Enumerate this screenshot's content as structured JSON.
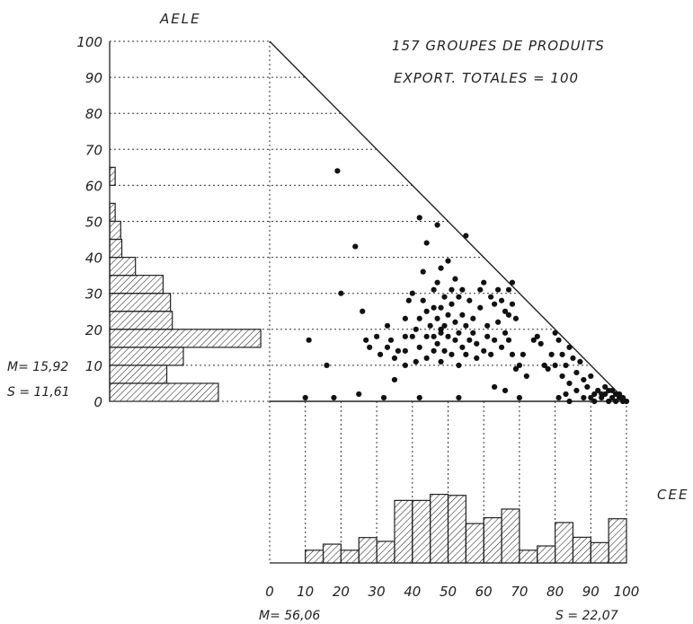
{
  "header": {
    "line1": "157 GROUPES DE PRODUITS",
    "line2": "EXPORT. TOTALES = 100"
  },
  "chart_data": {
    "type": "scatter",
    "title": "157 GROUPES DE PRODUITS",
    "subtitle": "EXPORT. TOTALES = 100",
    "xlabel": "CEE",
    "ylabel": "AELE",
    "xlim": [
      0,
      100
    ],
    "ylim": [
      0,
      100
    ],
    "x_ticks": [
      "0",
      "10",
      "20",
      "30",
      "40",
      "50",
      "60",
      "70",
      "80",
      "90",
      "100"
    ],
    "y_ticks": [
      "0",
      "10",
      "20",
      "30",
      "40",
      "50",
      "60",
      "70",
      "80",
      "90",
      "100"
    ],
    "points": [
      [
        19,
        64
      ],
      [
        11,
        17
      ],
      [
        16,
        10
      ],
      [
        10,
        1
      ],
      [
        18,
        1
      ],
      [
        25,
        2
      ],
      [
        32,
        1
      ],
      [
        42,
        1
      ],
      [
        53,
        1
      ],
      [
        24,
        43
      ],
      [
        20,
        30
      ],
      [
        26,
        25
      ],
      [
        27,
        17
      ],
      [
        28,
        15
      ],
      [
        30,
        18
      ],
      [
        31,
        13
      ],
      [
        33,
        15
      ],
      [
        33,
        21
      ],
      [
        34,
        17
      ],
      [
        35,
        12
      ],
      [
        36,
        14
      ],
      [
        35,
        6
      ],
      [
        38,
        10
      ],
      [
        38,
        14
      ],
      [
        38,
        18
      ],
      [
        38,
        23
      ],
      [
        39,
        28
      ],
      [
        40,
        18
      ],
      [
        40,
        30
      ],
      [
        41,
        11
      ],
      [
        41,
        20
      ],
      [
        42,
        15
      ],
      [
        42,
        23
      ],
      [
        42,
        51
      ],
      [
        43,
        28
      ],
      [
        43,
        36
      ],
      [
        44,
        12
      ],
      [
        44,
        18
      ],
      [
        44,
        25
      ],
      [
        45,
        21
      ],
      [
        46,
        14
      ],
      [
        46,
        26
      ],
      [
        46,
        31
      ],
      [
        47,
        16
      ],
      [
        47,
        23
      ],
      [
        47,
        33
      ],
      [
        47,
        49
      ],
      [
        48,
        11
      ],
      [
        48,
        19
      ],
      [
        48,
        26
      ],
      [
        48,
        37
      ],
      [
        49,
        14
      ],
      [
        49,
        21
      ],
      [
        49,
        29
      ],
      [
        50,
        24
      ],
      [
        50,
        18
      ],
      [
        50,
        39
      ],
      [
        51,
        13
      ],
      [
        51,
        27
      ],
      [
        51,
        31
      ],
      [
        52,
        17
      ],
      [
        52,
        22
      ],
      [
        52,
        34
      ],
      [
        53,
        10
      ],
      [
        53,
        19
      ],
      [
        53,
        29
      ],
      [
        54,
        15
      ],
      [
        54,
        24
      ],
      [
        54,
        31
      ],
      [
        55,
        21
      ],
      [
        55,
        46
      ],
      [
        55,
        13
      ],
      [
        56,
        17
      ],
      [
        56,
        28
      ],
      [
        57,
        23
      ],
      [
        57,
        19
      ],
      [
        58,
        16
      ],
      [
        59,
        26
      ],
      [
        59,
        31
      ],
      [
        60,
        14
      ],
      [
        60,
        33
      ],
      [
        61,
        21
      ],
      [
        61,
        18
      ],
      [
        62,
        13
      ],
      [
        62,
        29
      ],
      [
        63,
        27
      ],
      [
        63,
        17
      ],
      [
        64,
        22
      ],
      [
        64,
        31
      ],
      [
        65,
        15
      ],
      [
        65,
        28
      ],
      [
        66,
        19
      ],
      [
        66,
        25
      ],
      [
        67,
        24
      ],
      [
        67,
        31
      ],
      [
        68,
        27
      ],
      [
        68,
        33
      ],
      [
        69,
        23
      ],
      [
        69,
        9
      ],
      [
        70,
        10
      ],
      [
        71,
        13
      ],
      [
        72,
        7
      ],
      [
        63,
        4
      ],
      [
        66,
        3
      ],
      [
        70,
        1
      ],
      [
        67,
        17
      ],
      [
        68,
        13
      ],
      [
        74,
        17
      ],
      [
        75,
        18
      ],
      [
        77,
        10
      ],
      [
        78,
        9
      ],
      [
        76,
        16
      ],
      [
        79,
        13
      ],
      [
        80,
        19
      ],
      [
        80,
        10
      ],
      [
        81,
        17
      ],
      [
        82,
        13
      ],
      [
        82,
        7
      ],
      [
        83,
        10
      ],
      [
        84,
        15
      ],
      [
        84,
        5
      ],
      [
        85,
        12
      ],
      [
        86,
        8
      ],
      [
        86,
        3
      ],
      [
        87,
        11
      ],
      [
        88,
        6
      ],
      [
        88,
        1
      ],
      [
        89,
        4
      ],
      [
        90,
        7
      ],
      [
        91,
        2
      ],
      [
        92,
        3
      ],
      [
        93,
        1
      ],
      [
        94,
        2
      ],
      [
        95,
        3
      ],
      [
        96,
        1
      ],
      [
        97,
        2
      ],
      [
        98,
        1
      ],
      [
        99,
        0
      ],
      [
        96,
        3
      ],
      [
        97,
        0
      ],
      [
        98,
        2
      ],
      [
        99,
        1
      ],
      [
        95,
        0
      ],
      [
        100,
        0
      ],
      [
        81,
        1
      ],
      [
        83,
        2
      ],
      [
        84,
        0
      ],
      [
        90,
        1
      ],
      [
        91,
        0
      ],
      [
        94,
        4
      ],
      [
        93,
        2
      ],
      [
        58,
        12
      ],
      [
        44,
        44
      ],
      [
        48,
        20
      ],
      [
        46,
        18
      ]
    ],
    "aele_histogram": {
      "bin_width": 5,
      "bins_start": [
        0,
        5,
        10,
        15,
        20,
        25,
        30,
        35,
        40,
        45,
        50,
        60
      ],
      "values": [
        29.5,
        15.5,
        20,
        41,
        17,
        16.5,
        14.5,
        7,
        3.3,
        3,
        1.5,
        1.5
      ],
      "mean_label": "M= 15,92",
      "sd_label": "S = 11,61"
    },
    "cee_histogram": {
      "bin_width": 5,
      "bins_start": [
        10,
        15,
        20,
        25,
        30,
        35,
        40,
        45,
        50,
        55,
        60,
        65,
        70,
        75,
        80,
        85,
        90,
        95
      ],
      "values": [
        5,
        7.4,
        5,
        10,
        8.5,
        24.6,
        24.6,
        27,
        26.6,
        15.5,
        17.8,
        21.2,
        5,
        6.7,
        15.9,
        10.1,
        8,
        17.4
      ],
      "mean_label": "M= 56,06",
      "sd_label": "S = 22,07"
    }
  }
}
